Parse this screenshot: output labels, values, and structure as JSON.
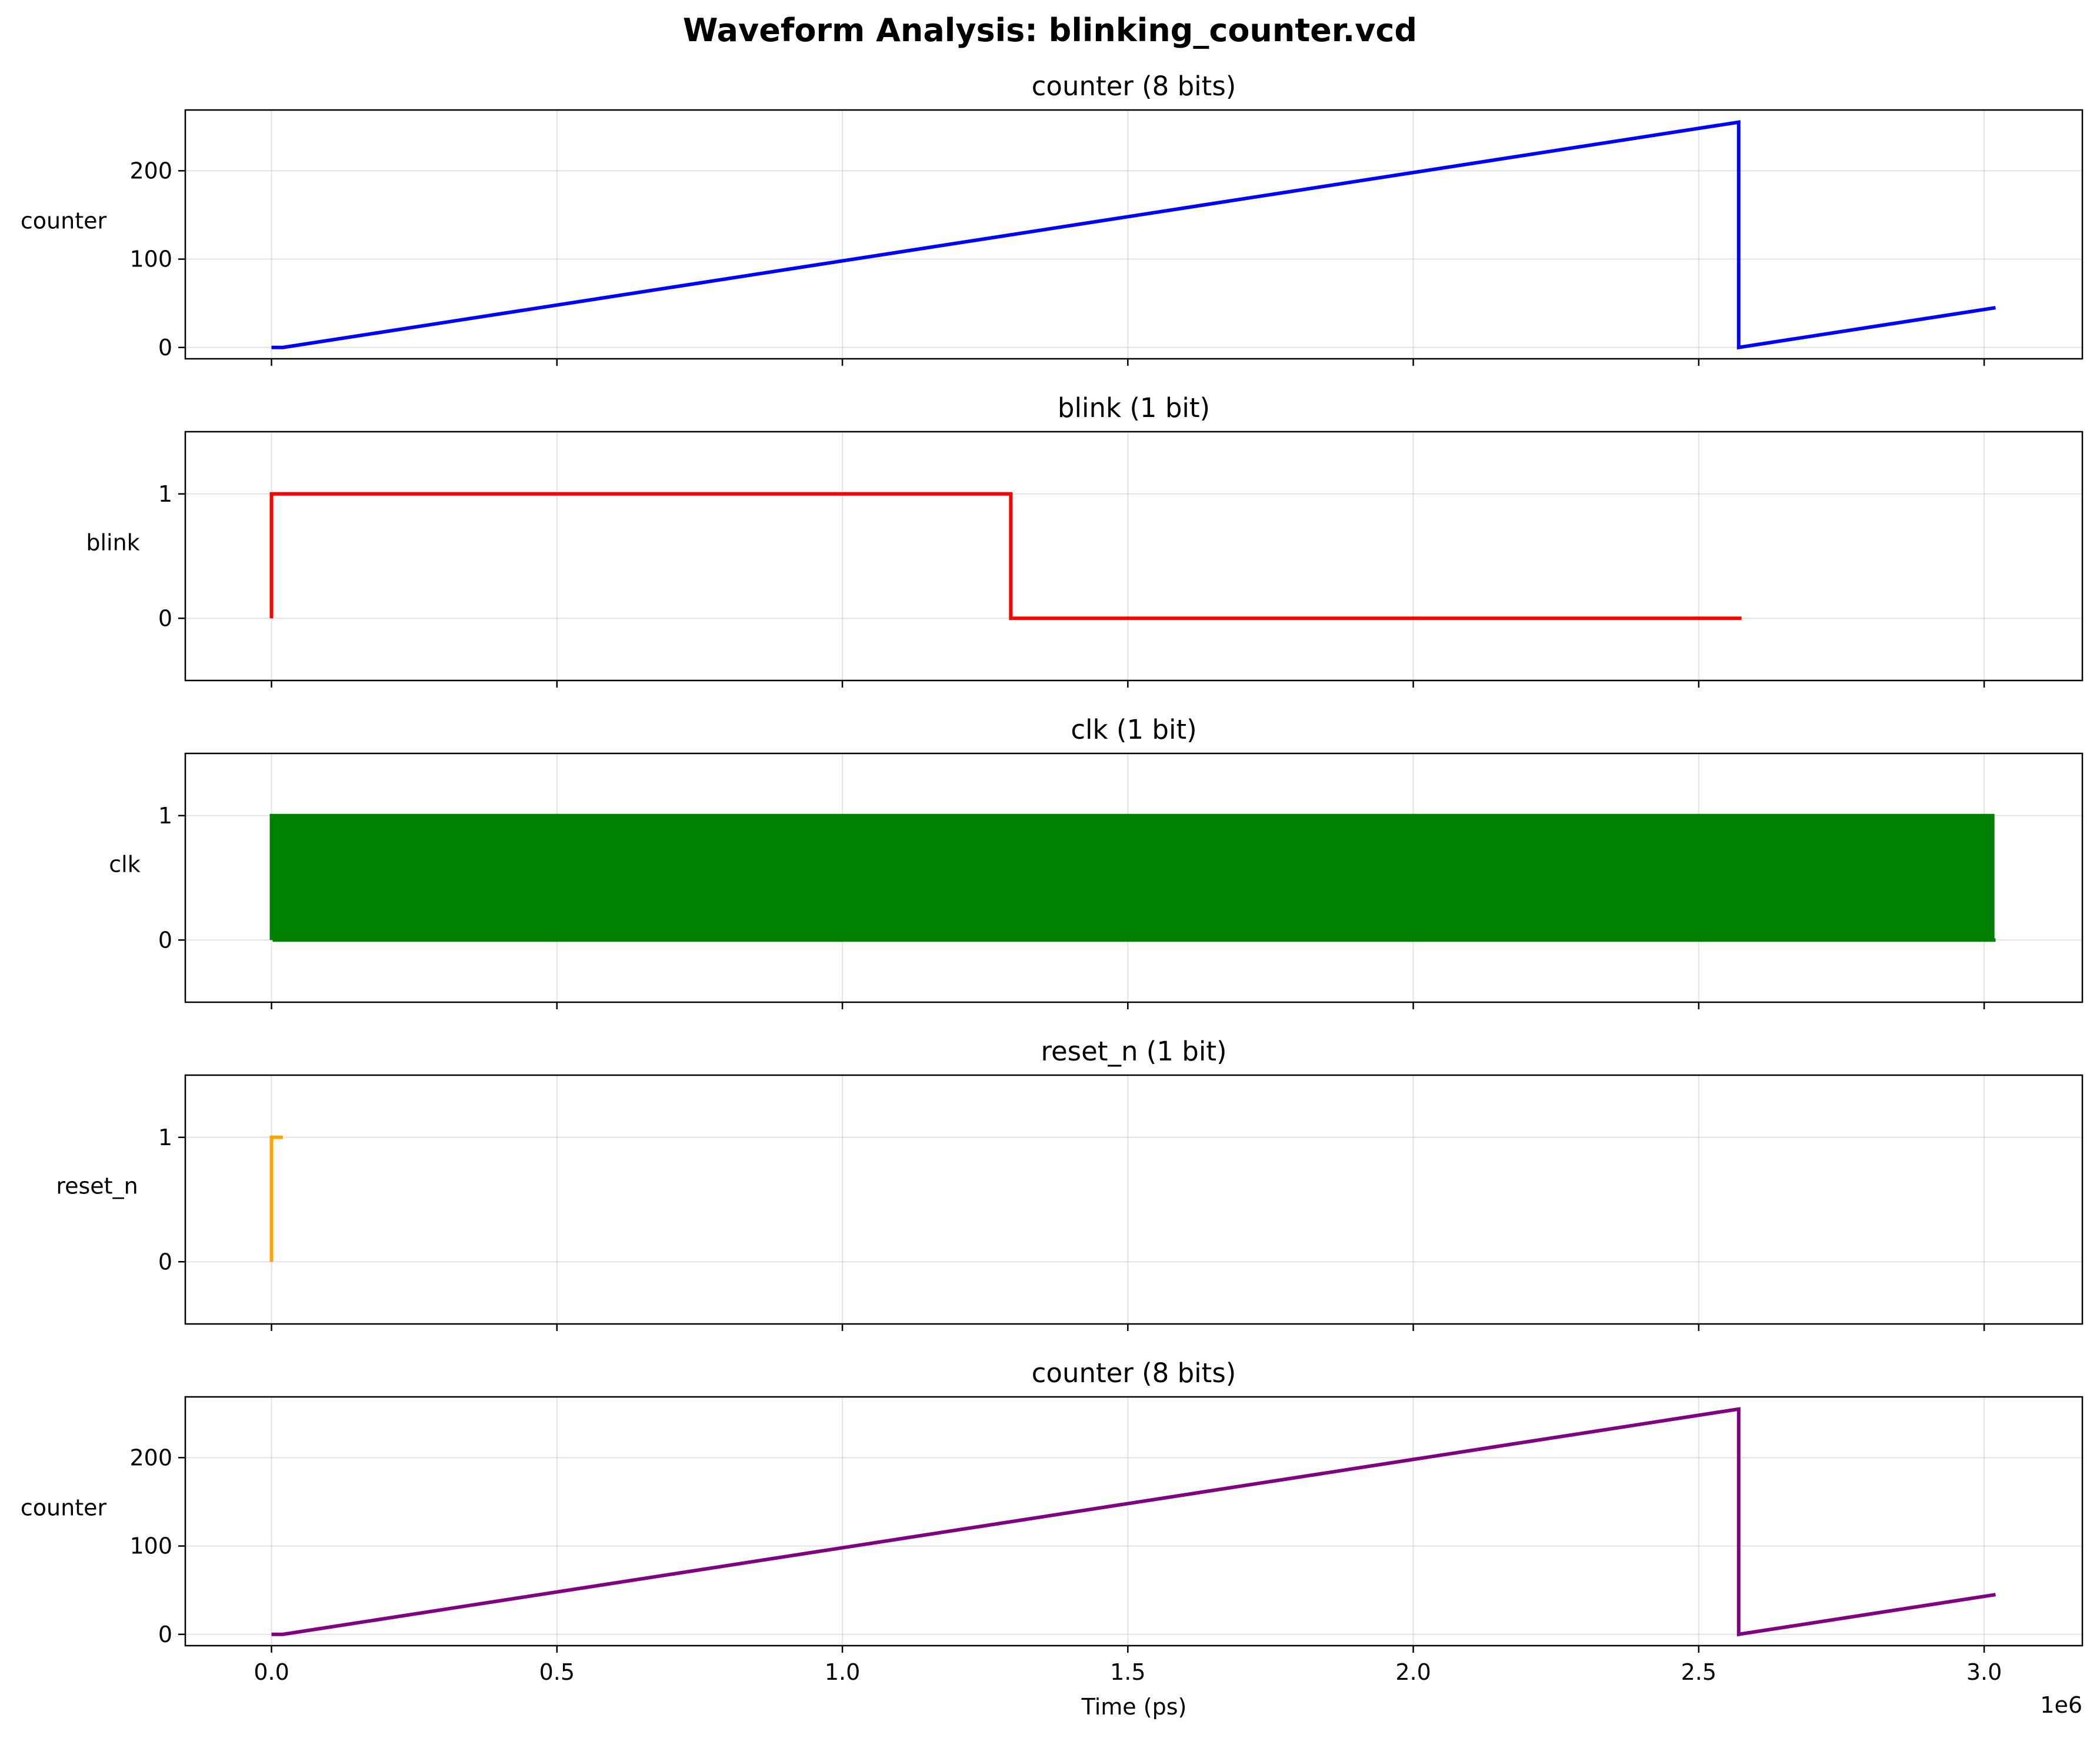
{
  "figure": {
    "title": "Waveform Analysis: blinking_counter.vcd",
    "xlabel": "Time (ps)",
    "x_offset_text": "1e6"
  },
  "chart_data": [
    {
      "type": "line",
      "title": "counter (8 bits)",
      "ylabel": "counter",
      "color": "#0000ff",
      "step": false,
      "xlim": [
        -0.151,
        3.172
      ],
      "ylim": [
        -12.8,
        268.8
      ],
      "xticks": [
        0.0,
        0.5,
        1.0,
        1.5,
        2.0,
        2.5,
        3.0
      ],
      "xtick_labels": [
        "0.0",
        "0.5",
        "1.0",
        "1.5",
        "2.0",
        "2.5",
        "3.0"
      ],
      "yticks": [
        0,
        100,
        200
      ],
      "ytick_labels": [
        "0",
        "100",
        "200"
      ],
      "show_xtick_labels": false,
      "x": [
        0.0,
        0.02,
        2.57,
        2.57,
        3.02
      ],
      "y": [
        0,
        0,
        255,
        0,
        45
      ]
    },
    {
      "type": "line",
      "title": "blink (1 bit)",
      "ylabel": "blink",
      "color": "#ff0000",
      "step": true,
      "xlim": [
        -0.151,
        3.172
      ],
      "ylim": [
        -0.5,
        1.5
      ],
      "xticks": [
        0.0,
        0.5,
        1.0,
        1.5,
        2.0,
        2.5,
        3.0
      ],
      "xtick_labels": [
        "0.0",
        "0.5",
        "1.0",
        "1.5",
        "2.0",
        "2.5",
        "3.0"
      ],
      "yticks": [
        0,
        1
      ],
      "ytick_labels": [
        "0",
        "1"
      ],
      "show_xtick_labels": false,
      "x": [
        0.0,
        0.0,
        1.295,
        2.575
      ],
      "y": [
        0,
        1,
        0,
        0
      ]
    },
    {
      "type": "line",
      "title": "clk (1 bit)",
      "ylabel": "clk",
      "color": "#008000",
      "step": true,
      "clock": {
        "start": 0.0,
        "end": 3.02,
        "period": 0.01,
        "low": 0,
        "high": 1
      },
      "xlim": [
        -0.151,
        3.172
      ],
      "ylim": [
        -0.5,
        1.5
      ],
      "xticks": [
        0.0,
        0.5,
        1.0,
        1.5,
        2.0,
        2.5,
        3.0
      ],
      "xtick_labels": [
        "0.0",
        "0.5",
        "1.0",
        "1.5",
        "2.0",
        "2.5",
        "3.0"
      ],
      "yticks": [
        0,
        1
      ],
      "ytick_labels": [
        "0",
        "1"
      ],
      "show_xtick_labels": false
    },
    {
      "type": "line",
      "title": "reset_n (1 bit)",
      "ylabel": "reset_n",
      "color": "#ffa500",
      "step": true,
      "xlim": [
        -0.151,
        3.172
      ],
      "ylim": [
        -0.5,
        1.5
      ],
      "xticks": [
        0.0,
        0.5,
        1.0,
        1.5,
        2.0,
        2.5,
        3.0
      ],
      "xtick_labels": [
        "0.0",
        "0.5",
        "1.0",
        "1.5",
        "2.0",
        "2.5",
        "3.0"
      ],
      "yticks": [
        0,
        1
      ],
      "ytick_labels": [
        "0",
        "1"
      ],
      "show_xtick_labels": false,
      "x": [
        0.0,
        0.0,
        0.02
      ],
      "y": [
        0,
        1,
        1
      ]
    },
    {
      "type": "line",
      "title": "counter (8 bits)",
      "ylabel": "counter",
      "color": "#800080",
      "step": false,
      "xlim": [
        -0.151,
        3.172
      ],
      "ylim": [
        -12.8,
        268.8
      ],
      "xticks": [
        0.0,
        0.5,
        1.0,
        1.5,
        2.0,
        2.5,
        3.0
      ],
      "xtick_labels": [
        "0.0",
        "0.5",
        "1.0",
        "1.5",
        "2.0",
        "2.5",
        "3.0"
      ],
      "yticks": [
        0,
        100,
        200
      ],
      "ytick_labels": [
        "0",
        "100",
        "200"
      ],
      "show_xtick_labels": true,
      "x": [
        0.0,
        0.02,
        2.57,
        2.57,
        3.02
      ],
      "y": [
        0,
        0,
        255,
        0,
        45
      ]
    }
  ]
}
